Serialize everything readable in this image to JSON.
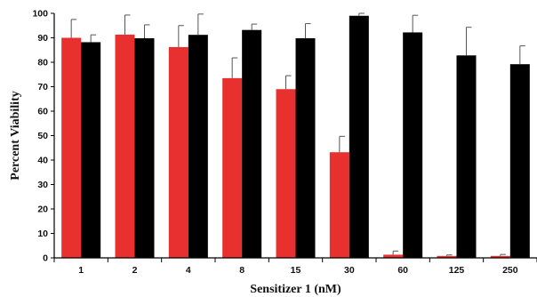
{
  "chart_data": {
    "type": "bar",
    "title": "",
    "xlabel": "Sensitizer 1 (nM)",
    "ylabel": "Percent Viability",
    "categories": [
      "1",
      "2",
      "4",
      "8",
      "15",
      "30",
      "60",
      "125",
      "250"
    ],
    "ylim": [
      0,
      100
    ],
    "yticks": [
      0,
      10,
      20,
      30,
      40,
      50,
      60,
      70,
      80,
      90,
      100
    ],
    "grid": false,
    "legend": "none",
    "series": [
      {
        "color": "#e8312f",
        "values": [
          90.0,
          91.3,
          86.2,
          73.5,
          69.0,
          43.2,
          1.3,
          0.8,
          0.8
        ],
        "errors": [
          7.5,
          8.0,
          8.8,
          8.3,
          5.5,
          6.5,
          1.5,
          0.4,
          0.6
        ]
      },
      {
        "color": "#000000",
        "values": [
          88.2,
          89.8,
          91.2,
          93.2,
          89.8,
          99.0,
          92.2,
          82.8,
          79.2
        ],
        "errors": [
          3.0,
          5.5,
          8.5,
          2.4,
          6.0,
          1.0,
          7.0,
          11.5,
          7.5
        ]
      }
    ]
  }
}
